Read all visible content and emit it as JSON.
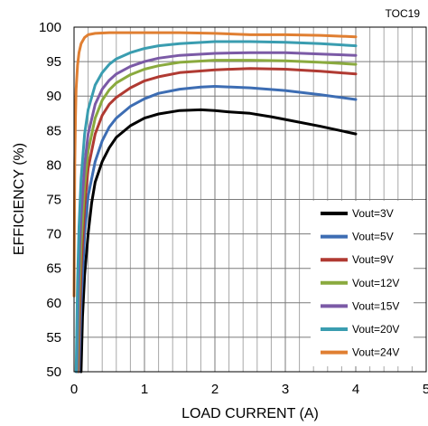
{
  "figure_tag": "TOC19",
  "chart_data": {
    "type": "line",
    "xlabel": "LOAD CURRENT (A)",
    "ylabel": "EFFICIENCY (%)",
    "xlim": [
      0,
      5
    ],
    "ylim": [
      50,
      100
    ],
    "x_ticks": [
      0,
      1,
      2,
      3,
      4,
      5
    ],
    "y_ticks": [
      50,
      55,
      60,
      65,
      70,
      75,
      80,
      85,
      90,
      95,
      100
    ],
    "x_minor_step": 0.2,
    "grid": true,
    "legend_position": "bottom-right",
    "series": [
      {
        "name": "Vout=3V",
        "color": "#000000",
        "x": [
          0.1,
          0.12,
          0.15,
          0.2,
          0.25,
          0.3,
          0.4,
          0.5,
          0.6,
          0.8,
          1.0,
          1.2,
          1.5,
          1.8,
          2.0,
          2.2,
          2.5,
          2.8,
          3.0,
          3.5,
          4.0
        ],
        "y": [
          50,
          58,
          64,
          70,
          74.5,
          77.5,
          80.5,
          82.5,
          84,
          85.7,
          86.8,
          87.4,
          87.9,
          88.0,
          87.9,
          87.7,
          87.5,
          87.0,
          86.6,
          85.6,
          84.5
        ]
      },
      {
        "name": "Vout=5V",
        "color": "#3d6db3",
        "x": [
          0.07,
          0.1,
          0.15,
          0.2,
          0.3,
          0.4,
          0.5,
          0.6,
          0.8,
          1.0,
          1.2,
          1.5,
          1.8,
          2.0,
          2.5,
          3.0,
          3.5,
          4.0
        ],
        "y": [
          50,
          60,
          70,
          75.5,
          80.5,
          83.5,
          85.5,
          86.8,
          88.5,
          89.6,
          90.4,
          91.0,
          91.3,
          91.4,
          91.2,
          90.8,
          90.2,
          89.5
        ]
      },
      {
        "name": "Vout=9V",
        "color": "#b03a32",
        "x": [
          0.06,
          0.08,
          0.1,
          0.15,
          0.2,
          0.3,
          0.4,
          0.5,
          0.6,
          0.8,
          1.0,
          1.2,
          1.5,
          2.0,
          2.5,
          3.0,
          3.5,
          4.0
        ],
        "y": [
          50,
          58,
          65,
          74,
          79.5,
          84.5,
          87.2,
          88.8,
          89.8,
          91.2,
          92.2,
          92.8,
          93.4,
          93.8,
          94.0,
          93.9,
          93.6,
          93.2
        ]
      },
      {
        "name": "Vout=12V",
        "color": "#8aaa3e",
        "x": [
          0.05,
          0.07,
          0.1,
          0.15,
          0.2,
          0.3,
          0.4,
          0.5,
          0.6,
          0.8,
          1.0,
          1.2,
          1.5,
          2.0,
          2.5,
          3.0,
          3.5,
          4.0
        ],
        "y": [
          50,
          60,
          68.5,
          77,
          82,
          86.8,
          89.4,
          90.9,
          91.9,
          93.1,
          93.9,
          94.4,
          94.9,
          95.2,
          95.2,
          95.1,
          94.9,
          94.6
        ]
      },
      {
        "name": "Vout=15V",
        "color": "#7b5aa6",
        "x": [
          0.04,
          0.06,
          0.08,
          0.1,
          0.15,
          0.2,
          0.3,
          0.4,
          0.5,
          0.6,
          0.8,
          1.0,
          1.2,
          1.5,
          2.0,
          2.5,
          3.0,
          3.5,
          4.0
        ],
        "y": [
          50,
          61,
          68,
          72.5,
          80,
          84.5,
          88.8,
          91.0,
          92.3,
          93.2,
          94.3,
          95.0,
          95.5,
          95.9,
          96.2,
          96.3,
          96.3,
          96.1,
          95.9
        ]
      },
      {
        "name": "Vout=20V",
        "color": "#3a9db0",
        "x": [
          0.03,
          0.05,
          0.07,
          0.1,
          0.15,
          0.2,
          0.3,
          0.4,
          0.5,
          0.6,
          0.8,
          1.0,
          1.2,
          1.5,
          2.0,
          2.5,
          3.0,
          3.5,
          4.0
        ],
        "y": [
          50,
          63,
          71,
          78,
          84.5,
          88,
          91.6,
          93.4,
          94.6,
          95.4,
          96.3,
          96.9,
          97.3,
          97.6,
          97.9,
          97.9,
          97.8,
          97.6,
          97.3
        ]
      },
      {
        "name": "Vout=24V",
        "color": "#e07f32",
        "x": [
          0.0,
          0.01,
          0.02,
          0.03,
          0.05,
          0.07,
          0.1,
          0.15,
          0.2,
          0.3,
          0.5,
          0.8,
          1.0,
          1.5,
          2.0,
          2.5,
          3.0,
          3.5,
          4.0
        ],
        "y": [
          61,
          80,
          87,
          91,
          94.5,
          96.3,
          97.6,
          98.5,
          98.9,
          99.1,
          99.2,
          99.2,
          99.2,
          99.2,
          99.1,
          98.9,
          98.9,
          98.8,
          98.6
        ]
      }
    ]
  }
}
